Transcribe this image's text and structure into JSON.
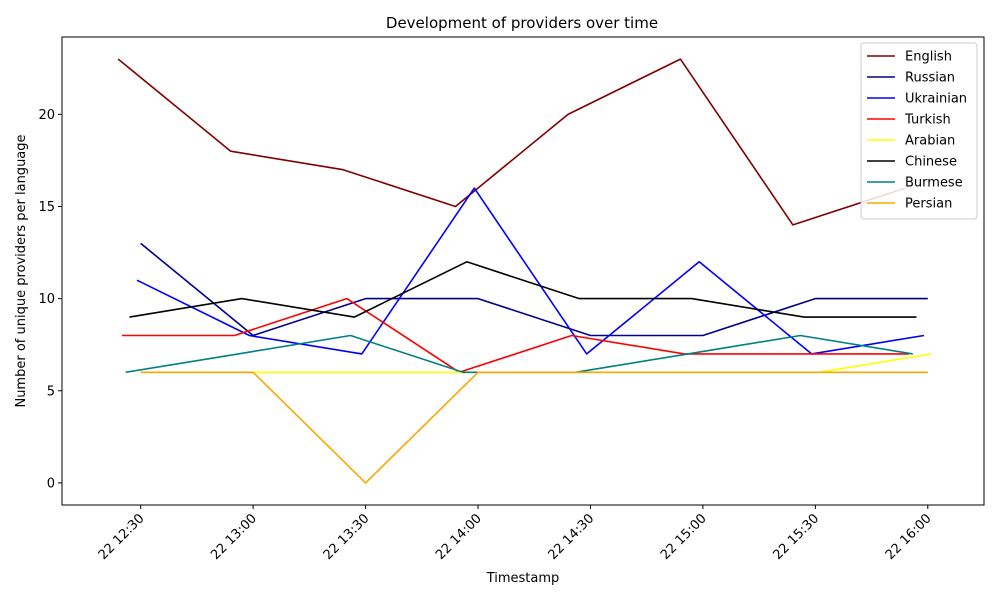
{
  "chart_data": {
    "type": "line",
    "title": "Development of providers over time",
    "xlabel": "Timestamp",
    "ylabel": "Number of unique providers per language",
    "x_range_minutes": [
      12.15,
      16.25
    ],
    "ylim": [
      -1.2,
      24.2
    ],
    "x_ticks": [
      {
        "t": "12:30",
        "label": "22 12:30"
      },
      {
        "t": "13:00",
        "label": "22 13:00"
      },
      {
        "t": "13:30",
        "label": "22 13:30"
      },
      {
        "t": "14:00",
        "label": "22 14:00"
      },
      {
        "t": "14:30",
        "label": "22 14:30"
      },
      {
        "t": "15:00",
        "label": "22 15:00"
      },
      {
        "t": "15:30",
        "label": "22 15:30"
      },
      {
        "t": "16:00",
        "label": "22 16:00"
      }
    ],
    "y_ticks": [
      0,
      5,
      10,
      15,
      20
    ],
    "grid": false,
    "legend_position": "top-right",
    "series": [
      {
        "name": "English",
        "color": "#800000",
        "x": [
          "12:24",
          "12:54",
          "13:24",
          "13:54",
          "14:24",
          "14:54",
          "15:24",
          "15:54"
        ],
        "values": [
          23,
          18,
          17,
          15,
          20,
          23,
          14,
          16
        ]
      },
      {
        "name": "Russian",
        "color": "#00008b",
        "x": [
          "12:30",
          "13:00",
          "13:30",
          "14:00",
          "14:30",
          "15:00",
          "15:30",
          "16:00"
        ],
        "values": [
          13,
          8,
          10,
          10,
          8,
          8,
          10,
          10
        ]
      },
      {
        "name": "Ukrainian",
        "color": "#0000ff",
        "x": [
          "12:29",
          "12:59",
          "13:29",
          "13:59",
          "14:29",
          "14:59",
          "15:29",
          "15:59"
        ],
        "values": [
          11,
          8,
          7,
          16,
          7,
          12,
          7,
          8
        ]
      },
      {
        "name": "Turkish",
        "color": "#ff0000",
        "x": [
          "12:25",
          "12:55",
          "13:25",
          "13:55",
          "14:25",
          "14:55",
          "15:25",
          "15:55"
        ],
        "values": [
          8,
          8,
          10,
          6,
          8,
          7,
          7,
          7
        ]
      },
      {
        "name": "Arabian",
        "color": "#ffff00",
        "x": [
          "12:31",
          "13:01",
          "13:31",
          "14:01",
          "14:31",
          "15:01",
          "15:31",
          "16:01"
        ],
        "values": [
          6,
          6,
          6,
          6,
          6,
          6,
          6,
          7
        ]
      },
      {
        "name": "Chinese",
        "color": "#000000",
        "x": [
          "12:27",
          "12:57",
          "13:27",
          "13:57",
          "14:27",
          "14:57",
          "15:27",
          "15:57"
        ],
        "values": [
          9,
          10,
          9,
          12,
          10,
          10,
          9,
          9
        ]
      },
      {
        "name": "Burmese",
        "color": "#008080",
        "x": [
          "12:26",
          "12:56",
          "13:26",
          "13:56",
          "14:26",
          "14:56",
          "15:26",
          "15:56"
        ],
        "values": [
          6,
          7,
          8,
          6,
          6,
          7,
          8,
          7
        ]
      },
      {
        "name": "Persian",
        "color": "#ffa500",
        "x": [
          "12:30",
          "13:00",
          "13:30",
          "14:00",
          "14:30",
          "15:00",
          "15:30",
          "16:00"
        ],
        "values": [
          6,
          6,
          0,
          6,
          6,
          6,
          6,
          6
        ]
      }
    ]
  }
}
